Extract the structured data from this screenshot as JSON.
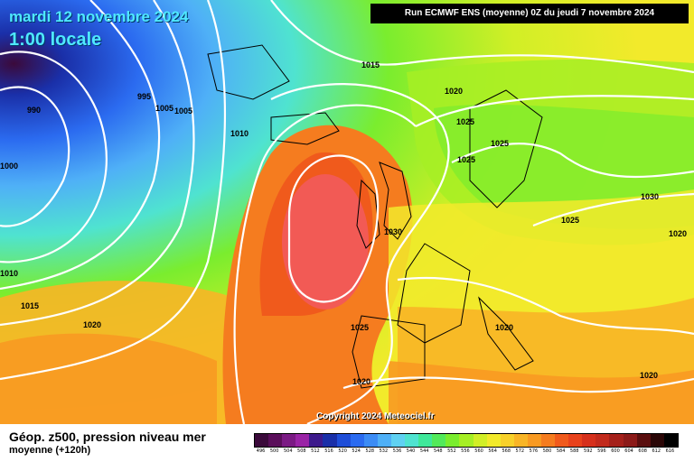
{
  "header": {
    "date": "mardi 12 novembre 2024",
    "local_time": "1:00 locale",
    "run_info": "Run ECMWF ENS (moyenne) 0Z du jeudi 7 novembre 2024"
  },
  "copyright": "Copyright 2024 Meteociel.fr",
  "legend": {
    "title": "Géop. z500, pression niveau mer",
    "subtitle": "moyenne   (+120h)",
    "ticks": [
      "496",
      "500",
      "504",
      "508",
      "512",
      "516",
      "520",
      "524",
      "528",
      "532",
      "536",
      "540",
      "544",
      "548",
      "552",
      "556",
      "560",
      "564",
      "568",
      "572",
      "576",
      "580",
      "584",
      "588",
      "592",
      "596",
      "600",
      "604",
      "608",
      "612",
      "616"
    ],
    "colors": [
      "#3b0a3b",
      "#5a0e5a",
      "#7b1a84",
      "#9a24a6",
      "#3d1a8c",
      "#1a2fa8",
      "#1f4ed8",
      "#2b6bf0",
      "#3c8cf5",
      "#4fb0f7",
      "#5fd1f2",
      "#4fe3d0",
      "#3fe89a",
      "#52ea5a",
      "#7aed2e",
      "#a6ef24",
      "#d1ef26",
      "#f2ea2b",
      "#f7d12a",
      "#f8b526",
      "#f89a22",
      "#f57c1f",
      "#f05a1c",
      "#e8421c",
      "#d6301c",
      "#c22a1c",
      "#a5201a",
      "#8c1a18",
      "#5a0e0e",
      "#2a0606",
      "#000000"
    ]
  },
  "map": {
    "isobar_labels": [
      "990",
      "995",
      "1000",
      "1005",
      "1010",
      "1015",
      "1020",
      "1025",
      "1030",
      "1020",
      "1025",
      "1025",
      "1030",
      "1025",
      "1010",
      "1015",
      "1020",
      "1025",
      "1020",
      "1020",
      "1020",
      "1005"
    ]
  }
}
